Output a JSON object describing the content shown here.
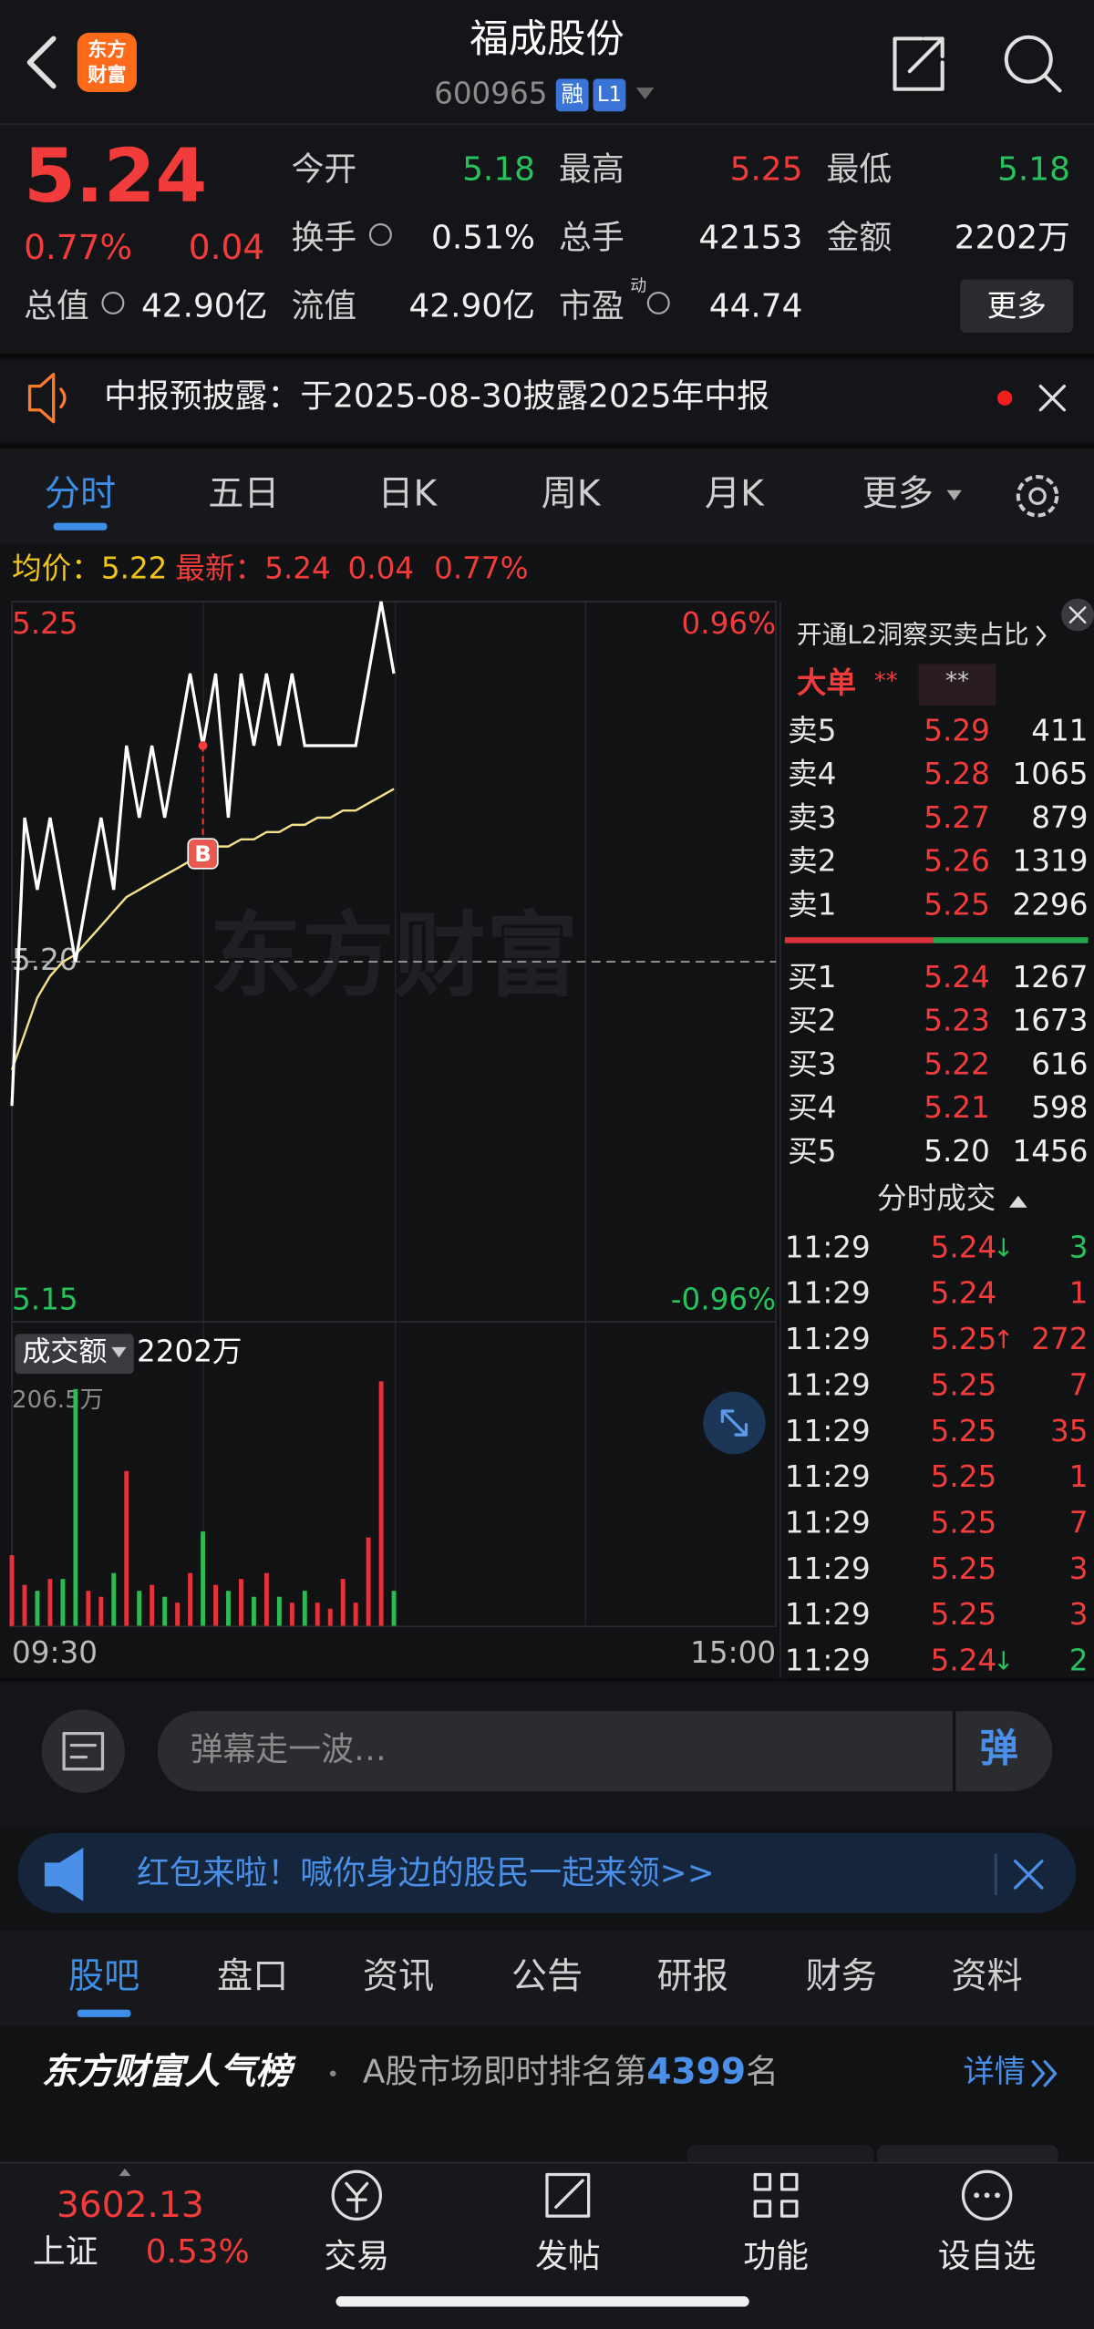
{
  "header": {
    "logo": [
      "东方",
      "财富"
    ],
    "title": "福成股份",
    "code": "600965",
    "badges": [
      "融",
      "L1"
    ]
  },
  "quote": {
    "price": "5.24",
    "change_pct": "0.77%",
    "change": "0.04",
    "rows": [
      [
        {
          "label": "今开",
          "value": "5.18",
          "color": "green"
        },
        {
          "label": "最高",
          "value": "5.25",
          "color": "red"
        },
        {
          "label": "最低",
          "value": "5.18",
          "color": "green"
        }
      ],
      [
        {
          "label": "换手",
          "value": "0.51%",
          "color": "white"
        },
        {
          "label": "总手",
          "value": "42153",
          "color": "white"
        },
        {
          "label": "金额",
          "value": "2202万",
          "color": "white"
        }
      ],
      [
        {
          "label": "总值",
          "value": "42.90亿",
          "color": "white"
        },
        {
          "label": "流值",
          "value": "42.90亿",
          "color": "white"
        },
        {
          "label": "市盈",
          "sup": "动",
          "value": "44.74",
          "color": "white"
        }
      ]
    ],
    "more": "更多"
  },
  "notice": "中报预披露：于2025-08-30披露2025年中报",
  "tabs": [
    "分时",
    "五日",
    "日K",
    "周K",
    "月K",
    "更多"
  ],
  "intraday": {
    "avg_label": "均价：",
    "avg": "5.22",
    "latest_label": "最新：",
    "latest": "5.24",
    "change": "0.04",
    "change_pct": "0.77%",
    "watermark": "东方财富",
    "x": [
      "09:30",
      "09:34",
      "09:38",
      "09:42",
      "09:46",
      "09:50",
      "09:54",
      "09:58",
      "10:02",
      "10:06",
      "10:10",
      "10:14",
      "10:18",
      "10:22",
      "10:26",
      "10:30",
      "10:34",
      "10:38",
      "10:42",
      "10:46",
      "10:50",
      "10:54",
      "10:58",
      "11:02",
      "11:06",
      "11:10",
      "11:14",
      "11:18",
      "11:22",
      "11:26",
      "11:30"
    ],
    "prices": [
      5.18,
      5.22,
      5.21,
      5.22,
      5.21,
      5.2,
      5.21,
      5.22,
      5.21,
      5.23,
      5.22,
      5.23,
      5.22,
      5.23,
      5.24,
      5.23,
      5.24,
      5.22,
      5.24,
      5.23,
      5.24,
      5.23,
      5.24,
      5.23,
      5.23,
      5.23,
      5.23,
      5.23,
      5.24,
      5.25,
      5.24
    ],
    "avg_prices": [
      5.185,
      5.19,
      5.195,
      5.198,
      5.2,
      5.201,
      5.203,
      5.205,
      5.207,
      5.209,
      5.21,
      5.211,
      5.212,
      5.213,
      5.214,
      5.215,
      5.216,
      5.216,
      5.217,
      5.217,
      5.218,
      5.218,
      5.219,
      5.219,
      5.22,
      5.22,
      5.221,
      5.221,
      5.222,
      5.223,
      5.224
    ],
    "ylim": [
      5.15,
      5.25
    ],
    "yticks": [
      5.15,
      {
        "value": 5.2,
        "label": "5.20"
      },
      5.25
    ],
    "pct_labels": [
      "0.96%",
      "-0.96%"
    ],
    "buy_marker": "B",
    "xticks": [
      "09:30",
      "15:00"
    ],
    "volume_label": "成交额",
    "volume_total": "2202万",
    "volume": [
      60,
      35,
      30,
      40,
      40,
      200,
      30,
      25,
      45,
      131,
      30,
      35,
      25,
      20,
      45,
      80,
      35,
      30,
      40,
      25,
      45,
      25,
      20,
      30,
      20,
      15,
      40,
      20,
      75,
      206.5,
      30
    ],
    "volume_ylim": [
      0,
      206.5
    ],
    "volume_max_label": "206.5万"
  },
  "orderbook": {
    "promo": "开通L2洞察买卖占比",
    "big_order": "大单",
    "big_values": [
      "**",
      "**"
    ],
    "asks": [
      {
        "label": "卖5",
        "price": "5.29",
        "volume": 411
      },
      {
        "label": "卖4",
        "price": "5.28",
        "volume": 1065
      },
      {
        "label": "卖3",
        "price": "5.27",
        "volume": 879
      },
      {
        "label": "卖2",
        "price": "5.26",
        "volume": 1319
      },
      {
        "label": "卖1",
        "price": "5.25",
        "volume": 2296
      }
    ],
    "bids": [
      {
        "label": "买1",
        "price": "5.24",
        "volume": 1267
      },
      {
        "label": "买2",
        "price": "5.23",
        "volume": 1673
      },
      {
        "label": "买3",
        "price": "5.22",
        "volume": 616
      },
      {
        "label": "买4",
        "price": "5.21",
        "volume": 598
      },
      {
        "label": "买5",
        "price": "5.20",
        "volume": 1456
      }
    ],
    "trades_title": "分时成交",
    "trades": [
      {
        "time": "11:29",
        "price": "5.24",
        "arrow": "↓",
        "volume": 3
      },
      {
        "time": "11:29",
        "price": "5.24",
        "volume": 1
      },
      {
        "time": "11:29",
        "price": "5.25",
        "arrow": "↑",
        "volume": 272
      },
      {
        "time": "11:29",
        "price": "5.25",
        "volume": 7
      },
      {
        "time": "11:29",
        "price": "5.25",
        "volume": 35
      },
      {
        "time": "11:29",
        "price": "5.25",
        "volume": 1
      },
      {
        "time": "11:29",
        "price": "5.25",
        "volume": 7
      },
      {
        "time": "11:29",
        "price": "5.25",
        "volume": 3
      },
      {
        "time": "11:29",
        "price": "5.25",
        "volume": 3
      },
      {
        "time": "11:29",
        "price": "5.24",
        "arrow": "↓",
        "volume": 2
      }
    ]
  },
  "comment": {
    "placeholder": "弹幕走一波…",
    "button": "弹"
  },
  "banner": "红包来啦！喊你身边的股民一起来领>>",
  "section_tabs": [
    "股吧",
    "盘口",
    "资讯",
    "公告",
    "研报",
    "财务",
    "资料"
  ],
  "ranking": {
    "title": "东方财富人气榜",
    "text": "A股市场即时排名第",
    "rank": "4399",
    "suffix": "名",
    "link": "详情"
  },
  "footer": {
    "index_value": "3602.13",
    "index_name": "上证",
    "index_change": "0.53%",
    "nav": [
      "交易",
      "发帖",
      "功能",
      "设自选"
    ]
  }
}
